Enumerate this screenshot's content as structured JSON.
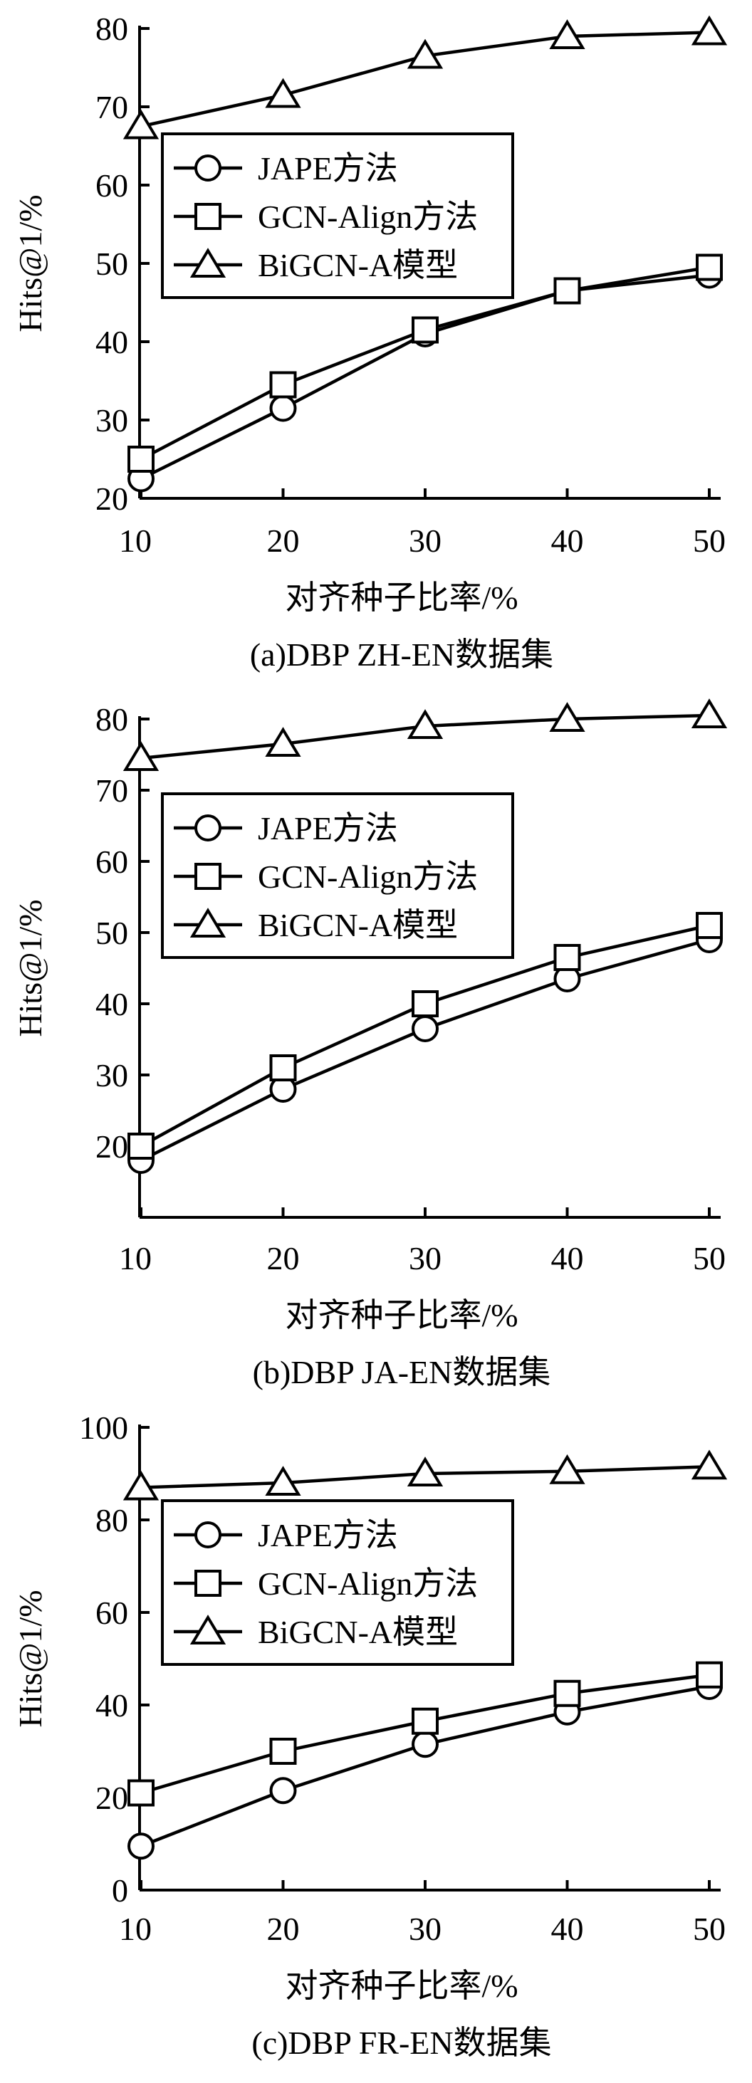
{
  "chart_data": [
    {
      "type": "line",
      "caption": "(a)DBP ZH-EN数据集",
      "xlabel": "对齐种子比率/%",
      "ylabel": "Hits@1/%",
      "x": [
        10,
        20,
        30,
        40,
        50
      ],
      "xticks": [
        10,
        20,
        30,
        40,
        50
      ],
      "ylim": [
        20,
        80
      ],
      "yticks": [
        20,
        30,
        40,
        50,
        60,
        70,
        80
      ],
      "grid": false,
      "legend_position": "upper-left",
      "series": [
        {
          "name": "JAPE方法",
          "marker": "circle",
          "values": [
            22.5,
            31.5,
            41,
            46.5,
            48.5
          ]
        },
        {
          "name": "GCN-Align方法",
          "marker": "square",
          "values": [
            25,
            34.5,
            41.5,
            46.5,
            49.5
          ]
        },
        {
          "name": "BiGCN-A模型",
          "marker": "triangle",
          "values": [
            67.5,
            71.5,
            76.5,
            79,
            79.5
          ]
        }
      ]
    },
    {
      "type": "line",
      "caption": "(b)DBP JA-EN数据集",
      "xlabel": "对齐种子比率/%",
      "ylabel": "Hits@1/%",
      "x": [
        10,
        20,
        30,
        40,
        50
      ],
      "xticks": [
        10,
        20,
        30,
        40,
        50
      ],
      "ylim": [
        10,
        80
      ],
      "yticks": [
        20,
        30,
        40,
        50,
        60,
        70,
        80
      ],
      "grid": false,
      "legend_position": "upper-left",
      "series": [
        {
          "name": "JAPE方法",
          "marker": "circle",
          "values": [
            18,
            28,
            36.5,
            43.5,
            49
          ]
        },
        {
          "name": "GCN-Align方法",
          "marker": "square",
          "values": [
            20,
            31,
            40,
            46.5,
            51
          ]
        },
        {
          "name": "BiGCN-A模型",
          "marker": "triangle",
          "values": [
            74.5,
            76.5,
            79,
            80,
            80.5
          ]
        }
      ]
    },
    {
      "type": "line",
      "caption": "(c)DBP FR-EN数据集",
      "xlabel": "对齐种子比率/%",
      "ylabel": "Hits@1/%",
      "x": [
        10,
        20,
        30,
        40,
        50
      ],
      "xticks": [
        10,
        20,
        30,
        40,
        50
      ],
      "ylim": [
        0,
        100
      ],
      "yticks": [
        0,
        20,
        40,
        60,
        80,
        100
      ],
      "grid": false,
      "legend_position": "upper-left",
      "series": [
        {
          "name": "JAPE方法",
          "marker": "circle",
          "values": [
            9.5,
            21.5,
            31.5,
            38.5,
            44
          ]
        },
        {
          "name": "GCN-Align方法",
          "marker": "square",
          "values": [
            21,
            30,
            36.5,
            42.5,
            46.5
          ]
        },
        {
          "name": "BiGCN-A模型",
          "marker": "triangle",
          "values": [
            87,
            88,
            90,
            90.5,
            91.5
          ]
        }
      ]
    }
  ]
}
